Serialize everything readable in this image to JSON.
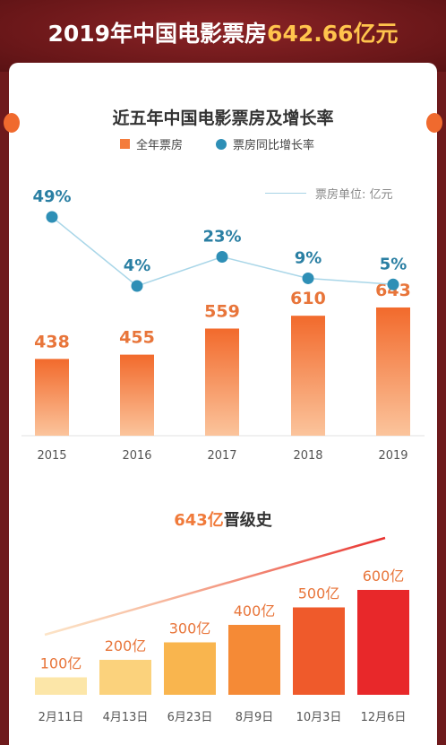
{
  "header": {
    "title_prefix": "2019年中国电影票房",
    "title_value": "642.66亿元"
  },
  "section1": {
    "title": "近五年中国电影票房及增长率",
    "unit_label": "票房单位: 亿元"
  },
  "section2": {
    "title_accent": "643亿",
    "title_rest": "晋级史"
  },
  "colors": {
    "accent": "#f47c3c",
    "line": "#2e8fb6",
    "growth_text": "#2a7fa3",
    "value_text": "#e8753a",
    "header_bg": "#6e1a1c",
    "title_highlight": "#ffc44d"
  },
  "chart_data": [
    {
      "type": "bar",
      "title": "近五年中国电影票房及增长率",
      "categories": [
        "2015",
        "2016",
        "2017",
        "2018",
        "2019"
      ],
      "series": [
        {
          "name": "全年票房",
          "type": "bar",
          "values": [
            438,
            455,
            559,
            610,
            643
          ],
          "labels": [
            "438",
            "455",
            "559",
            "610",
            "643"
          ]
        },
        {
          "name": "票房同比增长率",
          "type": "line",
          "values": [
            49,
            4,
            23,
            9,
            5
          ],
          "labels": [
            "49%",
            "4%",
            "23%",
            "9%",
            "5%"
          ]
        }
      ],
      "legend": "top-center",
      "grid": false
    },
    {
      "type": "bar",
      "title": "643亿晋级史",
      "categories": [
        "2月11日",
        "4月13日",
        "6月23日",
        "8月9日",
        "10月3日",
        "12月6日"
      ],
      "values": [
        100,
        200,
        300,
        400,
        500,
        600
      ],
      "labels": [
        "100亿",
        "200亿",
        "300亿",
        "400亿",
        "500亿",
        "600亿"
      ],
      "bar_colors": [
        "#fce6a8",
        "#fbd27c",
        "#f9b54e",
        "#f58a36",
        "#ef5a2b",
        "#e8282a"
      ],
      "grid": false
    }
  ]
}
